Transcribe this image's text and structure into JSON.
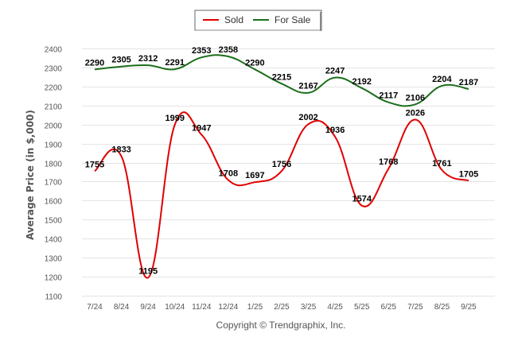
{
  "chart_data": {
    "type": "line",
    "title": "",
    "xlabel": "",
    "ylabel": "Average Price (in $,000)",
    "ylim": [
      1100,
      2400
    ],
    "yticks": [
      1100,
      1200,
      1300,
      1400,
      1500,
      1600,
      1700,
      1800,
      1900,
      2000,
      2100,
      2200,
      2300,
      2400
    ],
    "grid": true,
    "legend_position": "top-center",
    "categories": [
      "7/24",
      "8/24",
      "9/24",
      "10/24",
      "11/24",
      "12/24",
      "1/25",
      "2/25",
      "3/25",
      "4/25",
      "5/25",
      "6/25",
      "7/25",
      "8/25",
      "9/25"
    ],
    "series": [
      {
        "name": "Sold",
        "color": "#e00000",
        "values": [
          1755,
          1833,
          1195,
          1999,
          1947,
          1708,
          1697,
          1756,
          2002,
          1936,
          1574,
          1768,
          2026,
          1761,
          1705
        ]
      },
      {
        "name": "For Sale",
        "color": "#1a6e1a",
        "values": [
          2290,
          2305,
          2312,
          2291,
          2353,
          2358,
          2290,
          2215,
          2167,
          2247,
          2192,
          2117,
          2106,
          2204,
          2187
        ]
      }
    ],
    "credit": "Copyright © Trendgraphix, Inc."
  }
}
